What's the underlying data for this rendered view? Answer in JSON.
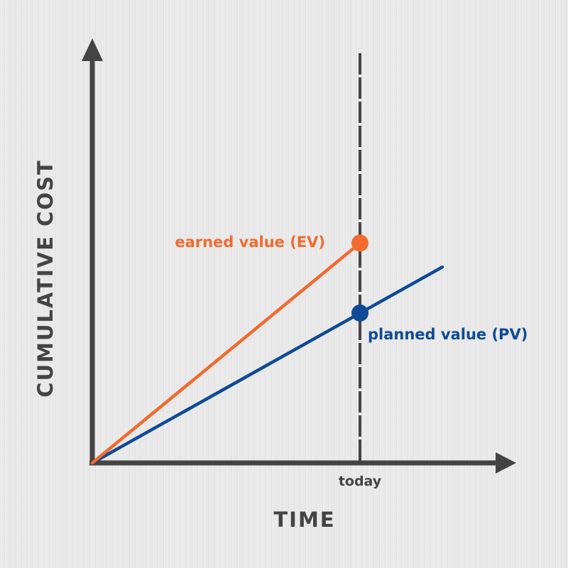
{
  "chart_data": {
    "type": "line",
    "xlabel": "TIME",
    "ylabel": "CUMULATIVE COST",
    "xlim": [
      0,
      100
    ],
    "ylim": [
      0,
      100
    ],
    "marker": {
      "label": "today",
      "x": 65
    },
    "series": [
      {
        "name": "earned value (EV)",
        "color": "#f26a2e",
        "x": [
          0,
          65
        ],
        "y": [
          0,
          55
        ],
        "end_point": true
      },
      {
        "name": "planned value (PV)",
        "color": "#0f4a96",
        "x": [
          0,
          85
        ],
        "y": [
          0,
          49
        ],
        "point": {
          "x": 65,
          "y": 37.5
        }
      }
    ],
    "grid": false,
    "legend": "inline labels"
  },
  "colors": {
    "axis": "#444444",
    "background": "#e9e9e9"
  }
}
